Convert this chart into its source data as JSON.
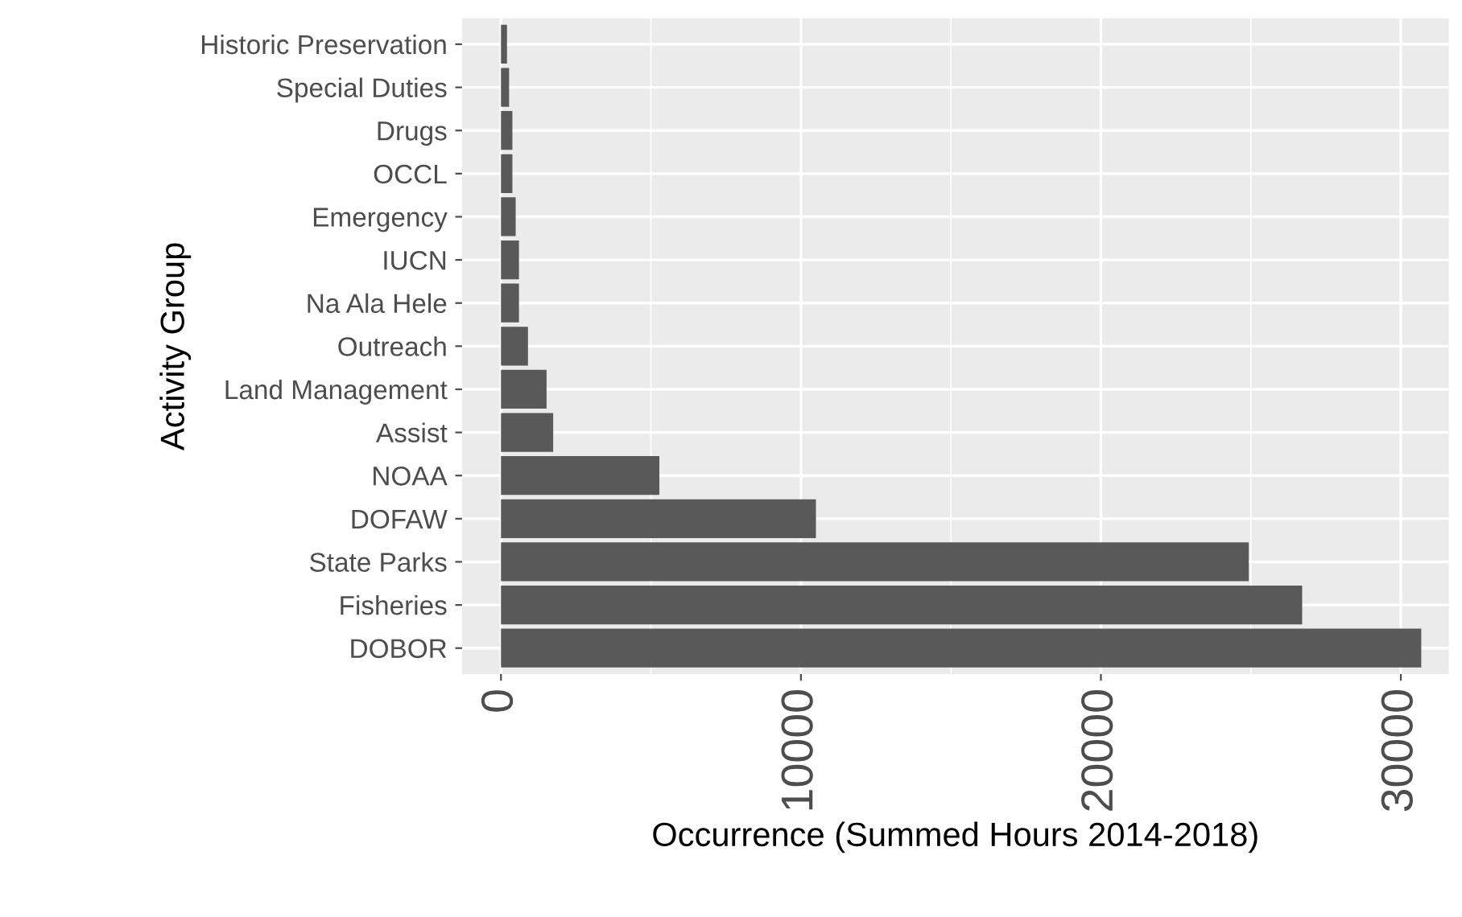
{
  "chart_data": {
    "type": "bar",
    "orientation": "horizontal",
    "xlabel": "Occurrence (Summed Hours 2014-2018)",
    "ylabel": "Activity Group",
    "categories": [
      "Historic Preservation",
      "Special Duties",
      "Drugs",
      "OCCL",
      "Emergency",
      "IUCN",
      "Na Ala Hele",
      "Outreach",
      "Land Management",
      "Assist",
      "NOAA",
      "DOFAW",
      "State Parks",
      "Fisheries",
      "DOBOR"
    ],
    "values": [
      200,
      270,
      380,
      380,
      490,
      600,
      600,
      900,
      1520,
      1740,
      5280,
      10500,
      24930,
      26710,
      30680
    ],
    "color": "#595959",
    "xlim": [
      -1300,
      31600
    ],
    "xticks": [
      0,
      10000,
      20000,
      30000
    ],
    "grid": true
  }
}
